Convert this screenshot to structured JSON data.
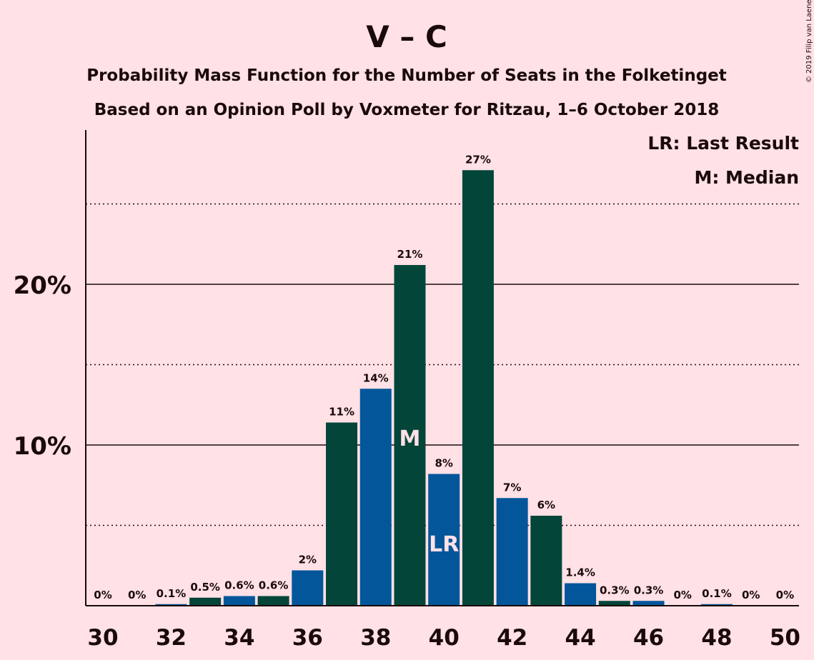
{
  "title": "V – C",
  "subtitle_1": "Probability Mass Function for the Number of Seats in the Folketinget",
  "subtitle_2": "Based on an Opinion Poll by Voxmeter for Ritzau, 1–6 October 2018",
  "copyright": "© 2019 Filip van Laenen",
  "legend": {
    "last_result": "LR: Last Result",
    "median": "M: Median"
  },
  "colors": {
    "background": "#ffe1e6",
    "green": "#04453a",
    "blue": "#03569a",
    "text": "#1a0a0a"
  },
  "chart_data": {
    "type": "bar",
    "x": [
      30,
      31,
      32,
      33,
      34,
      35,
      36,
      37,
      38,
      39,
      40,
      41,
      42,
      43,
      44,
      45,
      46,
      47,
      48,
      49,
      50
    ],
    "values": [
      0,
      0,
      0.1,
      0.5,
      0.6,
      0.6,
      2.2,
      11.4,
      13.5,
      21.2,
      8.2,
      27.1,
      6.7,
      5.6,
      1.4,
      0.3,
      0.3,
      0,
      0.1,
      0,
      0
    ],
    "data_labels": [
      "0%",
      "0%",
      "0.1%",
      "0.5%",
      "0.6%",
      "0.6%",
      "2%",
      "11%",
      "14%",
      "21%",
      "8%",
      "27%",
      "7%",
      "6%",
      "1.4%",
      "0.3%",
      "0.3%",
      "0%",
      "0.1%",
      "0%",
      "0%"
    ],
    "bar_colors": [
      "blue",
      "green",
      "blue",
      "green",
      "blue",
      "green",
      "blue",
      "green",
      "blue",
      "green",
      "blue",
      "green",
      "blue",
      "green",
      "blue",
      "green",
      "blue",
      "green",
      "blue",
      "green",
      "blue"
    ],
    "x_tick_labels": [
      "30",
      "32",
      "34",
      "36",
      "38",
      "40",
      "42",
      "44",
      "46",
      "48",
      "50"
    ],
    "x_ticks": [
      30,
      32,
      34,
      36,
      38,
      40,
      42,
      44,
      46,
      48,
      50
    ],
    "y_tick_labels": [
      "10%",
      "20%"
    ],
    "y_ticks": [
      10,
      20
    ],
    "y_solid_gridlines": [
      10,
      20
    ],
    "y_dotted_gridlines": [
      5,
      15,
      25
    ],
    "ylim": [
      0,
      29.6
    ],
    "median_seat": 39,
    "median_marker": "M",
    "last_result_seat": 40,
    "last_result_marker": "LR",
    "legend_position": "top-right"
  }
}
